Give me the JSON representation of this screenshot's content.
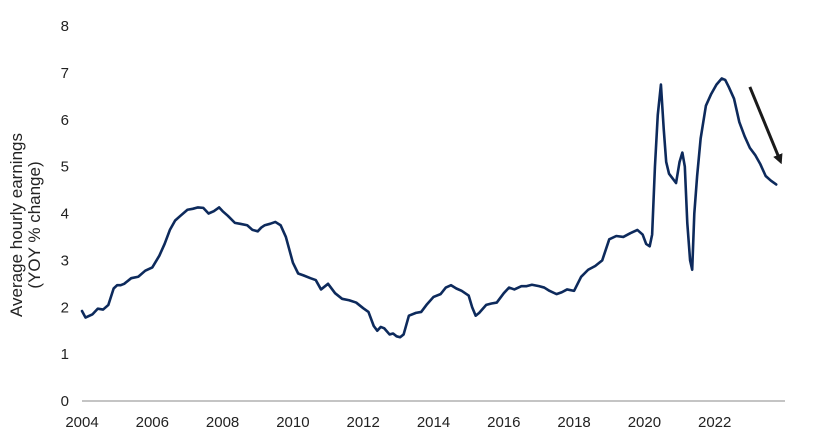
{
  "chart_data": {
    "type": "line",
    "title": "",
    "xlabel": "",
    "ylabel": [
      "Average hourly earnings",
      "(YOY % change)"
    ],
    "xlim": [
      2004,
      2023.9
    ],
    "ylim": [
      0,
      8
    ],
    "x_ticks": [
      "2004",
      "2006",
      "2008",
      "2010",
      "2012",
      "2014",
      "2016",
      "2018",
      "2020",
      "2022"
    ],
    "y_ticks": [
      "0",
      "1",
      "2",
      "3",
      "4",
      "5",
      "6",
      "7",
      "8"
    ],
    "grid": false,
    "series_color": "#0d2a5c",
    "arrow_color": "#1a1a1a",
    "annotation_arrow": {
      "from": [
        2023.0,
        6.7
      ],
      "to": [
        2023.85,
        5.15
      ]
    },
    "series": [
      {
        "x": [
          2004.0,
          2004.1,
          2004.3,
          2004.45,
          2004.6,
          2004.75,
          2004.9,
          2005.0,
          2005.1,
          2005.2,
          2005.4,
          2005.6,
          2005.8,
          2006.0,
          2006.2,
          2006.35,
          2006.5,
          2006.65,
          2006.8,
          2007.0,
          2007.15,
          2007.3,
          2007.45,
          2007.6,
          2007.75,
          2007.9,
          2008.0,
          2008.15,
          2008.35,
          2008.5,
          2008.7,
          2008.85,
          2009.0,
          2009.1,
          2009.2,
          2009.35,
          2009.5,
          2009.65,
          2009.8,
          2010.0,
          2010.15,
          2010.3,
          2010.5,
          2010.65,
          2010.8,
          2011.0,
          2011.2,
          2011.4,
          2011.6,
          2011.8,
          2012.0,
          2012.15,
          2012.3,
          2012.4,
          2012.5,
          2012.6,
          2012.75,
          2012.85,
          2012.95,
          2013.05,
          2013.15,
          2013.3,
          2013.5,
          2013.65,
          2013.8,
          2014.0,
          2014.2,
          2014.35,
          2014.5,
          2014.65,
          2014.8,
          2014.9,
          2015.0,
          2015.1,
          2015.2,
          2015.3,
          2015.5,
          2015.65,
          2015.8,
          2016.0,
          2016.15,
          2016.3,
          2016.5,
          2016.65,
          2016.8,
          2017.0,
          2017.15,
          2017.3,
          2017.5,
          2017.65,
          2017.8,
          2018.0,
          2018.2,
          2018.4,
          2018.6,
          2018.8,
          2019.0,
          2019.2,
          2019.4,
          2019.6,
          2019.8,
          2019.95,
          2020.05,
          2020.15,
          2020.22,
          2020.3,
          2020.38,
          2020.47,
          2020.55,
          2020.62,
          2020.7,
          2020.8,
          2020.9,
          2021.0,
          2021.08,
          2021.15,
          2021.22,
          2021.3,
          2021.36,
          2021.42,
          2021.5,
          2021.6,
          2021.75,
          2021.9,
          2022.05,
          2022.2,
          2022.3,
          2022.4,
          2022.55,
          2022.7,
          2022.85,
          2023.0,
          2023.15,
          2023.3,
          2023.45,
          2023.6,
          2023.75
        ],
        "values": [
          1.92,
          1.78,
          1.85,
          1.97,
          1.95,
          2.05,
          2.4,
          2.47,
          2.47,
          2.5,
          2.62,
          2.65,
          2.78,
          2.85,
          3.1,
          3.35,
          3.65,
          3.85,
          3.95,
          4.08,
          4.1,
          4.13,
          4.12,
          4.0,
          4.05,
          4.13,
          4.05,
          3.95,
          3.8,
          3.78,
          3.75,
          3.65,
          3.62,
          3.7,
          3.75,
          3.78,
          3.82,
          3.75,
          3.5,
          2.95,
          2.72,
          2.68,
          2.62,
          2.58,
          2.38,
          2.5,
          2.3,
          2.18,
          2.15,
          2.1,
          1.98,
          1.9,
          1.6,
          1.5,
          1.58,
          1.55,
          1.42,
          1.44,
          1.38,
          1.36,
          1.42,
          1.82,
          1.88,
          1.9,
          2.05,
          2.22,
          2.28,
          2.42,
          2.47,
          2.4,
          2.35,
          2.3,
          2.25,
          2.0,
          1.82,
          1.88,
          2.05,
          2.08,
          2.1,
          2.3,
          2.42,
          2.38,
          2.45,
          2.45,
          2.48,
          2.45,
          2.42,
          2.35,
          2.28,
          2.32,
          2.38,
          2.35,
          2.65,
          2.8,
          2.88,
          3.0,
          3.45,
          3.52,
          3.5,
          3.58,
          3.65,
          3.55,
          3.35,
          3.3,
          3.55,
          5.0,
          6.1,
          6.75,
          5.8,
          5.1,
          4.85,
          4.75,
          4.65,
          5.1,
          5.3,
          5.0,
          3.8,
          3.0,
          2.8,
          4.0,
          4.8,
          5.6,
          6.3,
          6.55,
          6.75,
          6.88,
          6.85,
          6.7,
          6.45,
          5.95,
          5.65,
          5.4,
          5.25,
          5.05,
          4.8,
          4.7,
          4.62
        ]
      }
    ]
  }
}
